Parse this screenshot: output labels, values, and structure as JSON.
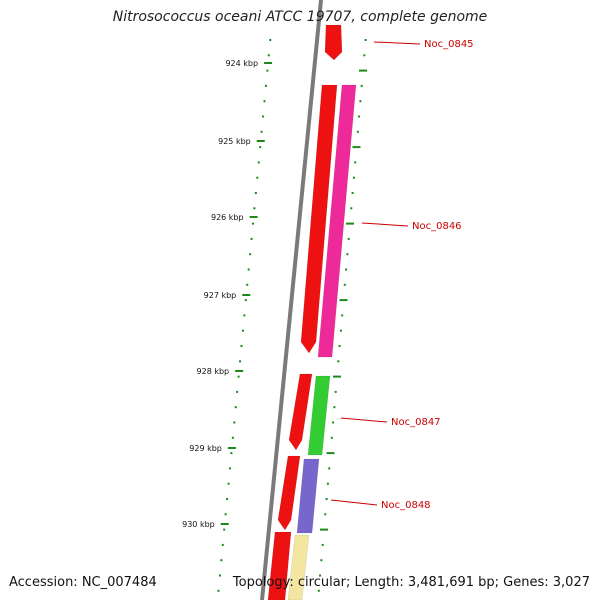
{
  "title": "Nitrosococcus oceani ATCC 19707, complete genome",
  "footer": {
    "accession": "Accession: NC_007484",
    "stats": "Topology: circular; Length: 3,481,691 bp; Genes: 3,027"
  },
  "colors": {
    "backbone": "#7a7a7a",
    "tick": "#1a8a1a",
    "label": "#cc0000",
    "gene_red": "#ee1111",
    "gene_pink": "#ee2a9a",
    "gene_green": "#33cc33",
    "gene_blue": "#7766cc",
    "gene_yellow": "#f3e6a0"
  },
  "kbp_ticks": [
    "924 kbp",
    "925 kbp",
    "926 kbp",
    "927 kbp",
    "928 kbp",
    "929 kbp",
    "930 kbp"
  ],
  "genes": [
    {
      "id": "Noc_0845",
      "label": "Noc_0845"
    },
    {
      "id": "Noc_0846",
      "label": "Noc_0846"
    },
    {
      "id": "Noc_0847",
      "label": "Noc_0847"
    },
    {
      "id": "Noc_0848",
      "label": "Noc_0848"
    }
  ]
}
